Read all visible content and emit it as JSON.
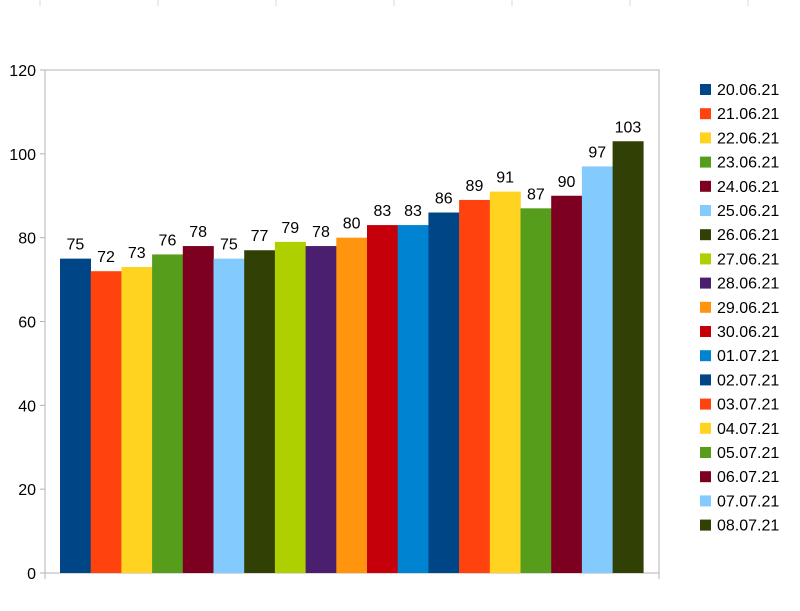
{
  "chart_data": {
    "type": "bar",
    "title": "",
    "xlabel": "",
    "ylabel": "",
    "ylim": [
      0,
      120
    ],
    "yticks": [
      0,
      20,
      40,
      60,
      80,
      100,
      120
    ],
    "grid": false,
    "legend_position": "right",
    "show_data_labels": true,
    "series": [
      {
        "name": "20.06.21",
        "value": 75,
        "color": "#004586"
      },
      {
        "name": "21.06.21",
        "value": 72,
        "color": "#ff420e"
      },
      {
        "name": "22.06.21",
        "value": 73,
        "color": "#ffd320"
      },
      {
        "name": "23.06.21",
        "value": 76,
        "color": "#579d1c"
      },
      {
        "name": "24.06.21",
        "value": 78,
        "color": "#7e0021"
      },
      {
        "name": "25.06.21",
        "value": 75,
        "color": "#83caff"
      },
      {
        "name": "26.06.21",
        "value": 77,
        "color": "#314004"
      },
      {
        "name": "27.06.21",
        "value": 79,
        "color": "#aecf00"
      },
      {
        "name": "28.06.21",
        "value": 78,
        "color": "#4b1f6f"
      },
      {
        "name": "29.06.21",
        "value": 80,
        "color": "#ff950e"
      },
      {
        "name": "30.06.21",
        "value": 83,
        "color": "#c5000b"
      },
      {
        "name": "01.07.21",
        "value": 83,
        "color": "#0084d1"
      },
      {
        "name": "02.07.21",
        "value": 86,
        "color": "#004586"
      },
      {
        "name": "03.07.21",
        "value": 89,
        "color": "#ff420e"
      },
      {
        "name": "04.07.21",
        "value": 91,
        "color": "#ffd320"
      },
      {
        "name": "05.07.21",
        "value": 87,
        "color": "#579d1c"
      },
      {
        "name": "06.07.21",
        "value": 90,
        "color": "#7e0021"
      },
      {
        "name": "07.07.21",
        "value": 97,
        "color": "#83caff"
      },
      {
        "name": "08.07.21",
        "value": 103,
        "color": "#314004"
      }
    ]
  }
}
